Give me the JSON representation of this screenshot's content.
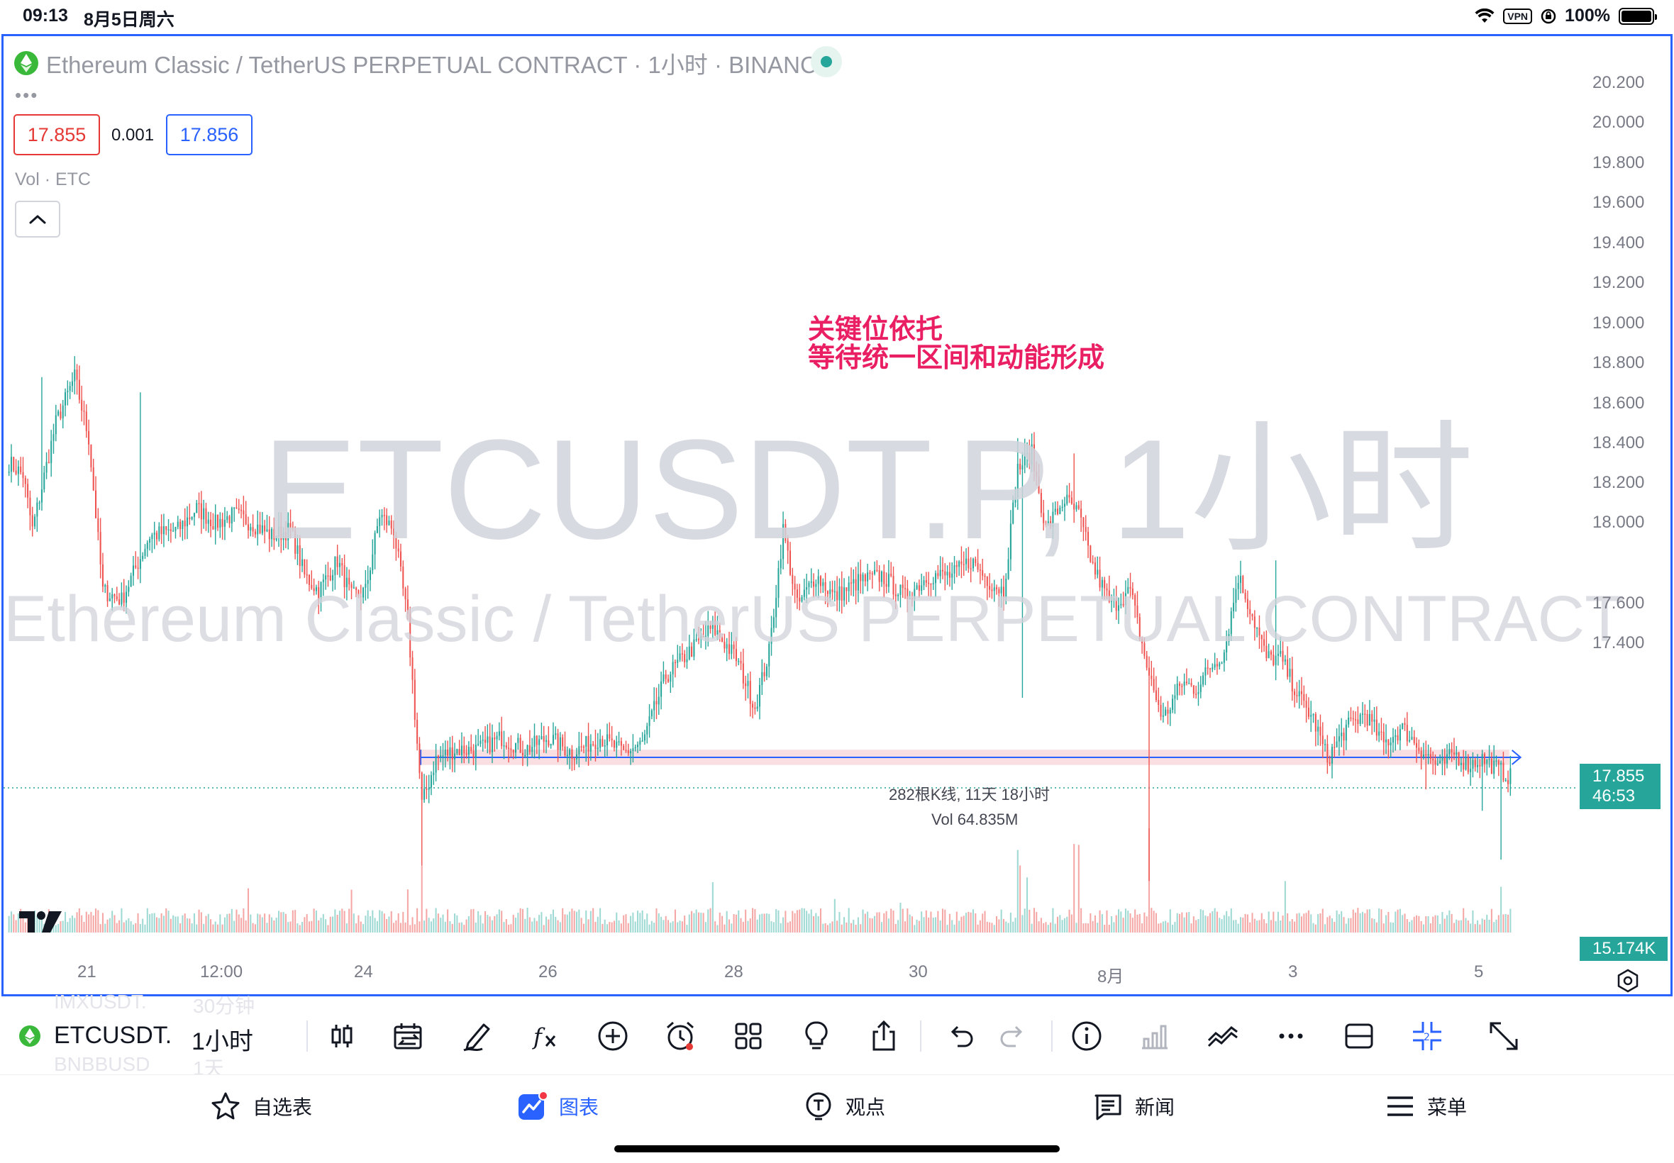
{
  "status_bar": {
    "time": "09:13",
    "date": "8月5日周六",
    "vpn": "VPN",
    "battery": "100%"
  },
  "chart": {
    "title": "Ethereum Classic / TetherUS PERPETUAL CONTRACT · 1小时 · BINANCE",
    "sell_price": "17.855",
    "spread": "0.001",
    "buy_price": "17.856",
    "volume_label": "Vol · ETC",
    "annotation_line1": "关键位依托",
    "annotation_line2": "等待统一区间和动能形成",
    "watermark_symbol": "ETCUSDT.P, 1小时",
    "watermark_name": "Ethereum Classic / TetherUS PERPETUAL CONTRACT",
    "measure_bars": "282根K线, 11天 18小时",
    "measure_volume": "Vol 64.835M",
    "last_price": "17.855",
    "countdown": "46:53",
    "volume_tag": "15.174K",
    "colors": {
      "up": "#26a69a",
      "down": "#ef5350",
      "accent": "#2962ff",
      "annotation": "#e91e63"
    }
  },
  "chart_data": {
    "type": "candlestick",
    "title": "Ethereum Classic / TetherUS PERPETUAL CONTRACT · 1小时 · BINANCE",
    "y_ticks": [
      "20.200",
      "20.000",
      "19.800",
      "19.600",
      "19.400",
      "19.200",
      "19.000",
      "18.800",
      "18.600",
      "18.400",
      "18.200",
      "18.000",
      "17.600",
      "17.400"
    ],
    "ylim": [
      17.3,
      20.3
    ],
    "x_ticks": [
      "21",
      "12:00",
      "24",
      "26",
      "28",
      "30",
      "8月",
      "3",
      "5"
    ],
    "close_path": [
      [
        0,
        18.92
      ],
      [
        6,
        18.88
      ],
      [
        10,
        18.7
      ],
      [
        20,
        19.05
      ],
      [
        28,
        19.2
      ],
      [
        34,
        19.0
      ],
      [
        40,
        18.5
      ],
      [
        48,
        18.47
      ],
      [
        60,
        18.68
      ],
      [
        72,
        18.7
      ],
      [
        80,
        18.77
      ],
      [
        88,
        18.72
      ],
      [
        96,
        18.75
      ],
      [
        104,
        18.72
      ],
      [
        112,
        18.68
      ],
      [
        120,
        18.7
      ],
      [
        126,
        18.55
      ],
      [
        132,
        18.5
      ],
      [
        140,
        18.6
      ],
      [
        146,
        18.48
      ],
      [
        152,
        18.5
      ],
      [
        158,
        18.75
      ],
      [
        164,
        18.7
      ],
      [
        170,
        18.4
      ],
      [
        176,
        17.8
      ],
      [
        182,
        17.95
      ],
      [
        190,
        17.98
      ],
      [
        200,
        17.98
      ],
      [
        210,
        18.02
      ],
      [
        220,
        17.98
      ],
      [
        230,
        18.02
      ],
      [
        240,
        17.97
      ],
      [
        252,
        18.02
      ],
      [
        262,
        17.97
      ],
      [
        270,
        18.0
      ],
      [
        280,
        18.22
      ],
      [
        290,
        18.3
      ],
      [
        300,
        18.38
      ],
      [
        310,
        18.28
      ],
      [
        318,
        18.12
      ],
      [
        324,
        18.3
      ],
      [
        330,
        18.7
      ],
      [
        336,
        18.45
      ],
      [
        344,
        18.55
      ],
      [
        352,
        18.48
      ],
      [
        362,
        18.53
      ],
      [
        372,
        18.55
      ],
      [
        382,
        18.48
      ],
      [
        392,
        18.55
      ],
      [
        402,
        18.55
      ],
      [
        410,
        18.6
      ],
      [
        418,
        18.53
      ],
      [
        424,
        18.5
      ],
      [
        430,
        18.9
      ],
      [
        436,
        18.95
      ],
      [
        442,
        18.7
      ],
      [
        450,
        18.8
      ],
      [
        456,
        18.75
      ],
      [
        462,
        18.58
      ],
      [
        470,
        18.45
      ],
      [
        478,
        18.5
      ],
      [
        486,
        18.22
      ],
      [
        492,
        18.08
      ],
      [
        500,
        18.2
      ],
      [
        506,
        18.18
      ],
      [
        512,
        18.25
      ],
      [
        518,
        18.3
      ],
      [
        524,
        18.55
      ],
      [
        530,
        18.42
      ],
      [
        536,
        18.28
      ],
      [
        542,
        18.28
      ],
      [
        550,
        18.15
      ],
      [
        556,
        18.08
      ],
      [
        562,
        17.95
      ],
      [
        570,
        18.05
      ],
      [
        578,
        18.1
      ],
      [
        586,
        18.0
      ],
      [
        594,
        18.05
      ],
      [
        602,
        17.98
      ],
      [
        610,
        17.92
      ],
      [
        616,
        17.97
      ],
      [
        622,
        17.93
      ],
      [
        628,
        17.95
      ],
      [
        634,
        17.92
      ],
      [
        640,
        17.89
      ]
    ],
    "volume_series": "hourly volume bars per candle, peaks ~45M around candle 430 (7/31)",
    "range_box": {
      "price_top": 17.96,
      "price_bottom": 17.94,
      "label": "282根K线, 11天 18小时",
      "volume": "Vol 64.835M"
    },
    "last_price": 17.855
  },
  "toolbar": {
    "symbol": "ETCUSDT.",
    "interval": "1小时",
    "ghost_symbol_1": "IMXUSDT.",
    "ghost_interval_1": "30分钟",
    "ghost_symbol_2": "BNBBUSD",
    "ghost_interval_2": "1天",
    "icons": [
      "candles-icon",
      "compare-icon",
      "draw-icon",
      "indicators-icon",
      "add-icon",
      "alert-icon",
      "layout-icon",
      "ideas-icon",
      "share-icon",
      "undo-icon",
      "redo-icon",
      "info-icon",
      "volume-profile-icon",
      "replay-icon",
      "more-icon",
      "split-view-icon",
      "sync-icon",
      "fullscreen-icon"
    ]
  },
  "tabbar": {
    "watchlist": "自选表",
    "chart": "图表",
    "ideas": "观点",
    "news": "新闻",
    "menu": "菜单"
  }
}
